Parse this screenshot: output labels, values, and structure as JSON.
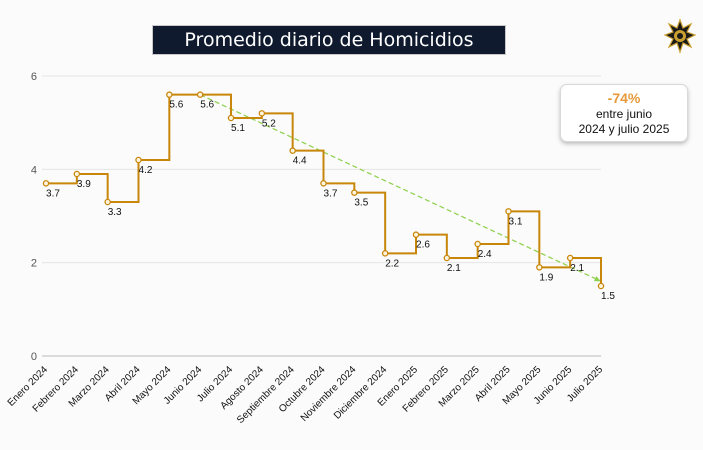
{
  "header": {
    "title": "Promedio diario de Homicidios"
  },
  "annotation": {
    "percent": "-74%",
    "line1": "entre junio",
    "line2": "2024 y julio 2025"
  },
  "colors": {
    "series": "#c8860b",
    "trend": "#8fd14f",
    "title_bg": "#0f1a2e",
    "percent": "#e69a3b"
  },
  "logo": {
    "icon": "star-badge-icon"
  },
  "chart_data": {
    "type": "line",
    "step": true,
    "title": "Promedio diario de Homicidios",
    "categories": [
      "Enero 2024",
      "Febrero 2024",
      "Marzo 2024",
      "Abril 2024",
      "Mayo 2024",
      "Junio 2024",
      "Julio 2024",
      "Agosto 2024",
      "Septiembre 2024",
      "Octubre 2024",
      "Noviembre 2024",
      "Diciembre 2024",
      "Enero 2025",
      "Febrero 2025",
      "Marzo 2025",
      "Abril 2025",
      "Mayo 2025",
      "Junio 2025",
      "Julio 2025"
    ],
    "series": [
      {
        "values": [
          3.7,
          3.9,
          3.3,
          4.2,
          5.6,
          5.6,
          5.1,
          5.2,
          4.4,
          3.7,
          3.5,
          2.2,
          2.6,
          2.1,
          2.4,
          3.1,
          1.9,
          2.1,
          1.5
        ]
      }
    ],
    "trendline": {
      "from": "Junio 2024",
      "to": "Julio 2025",
      "y_start": 5.6,
      "y_end": 1.6
    },
    "ylim": [
      0,
      6
    ],
    "yticks": [
      0,
      2,
      4,
      6
    ],
    "grid": true,
    "xlabel": "",
    "ylabel": ""
  }
}
